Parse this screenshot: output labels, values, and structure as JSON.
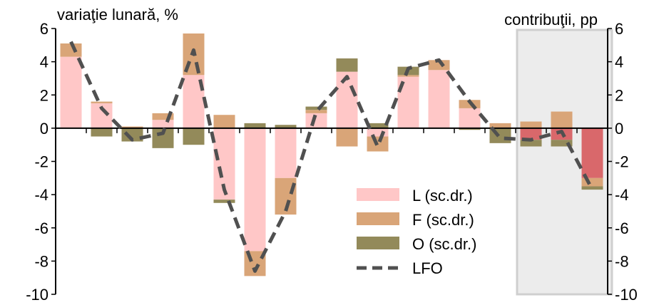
{
  "chart_data": {
    "type": "bar",
    "stacked": true,
    "title": "",
    "ylabel_left": "variaţie lunară, %",
    "ylabel_right": "contribuţii, pp",
    "ylim": [
      -10,
      6
    ],
    "yticks": [
      6,
      4,
      2,
      0,
      -2,
      -4,
      -6,
      -8,
      -10
    ],
    "grid": false,
    "highlighted_period": "last 3 periods (shaded box)",
    "n_periods": 18,
    "series": [
      {
        "name": "L (sc.dr.)",
        "kind": "bar",
        "color": "#ffc7c7",
        "values": [
          4.3,
          1.5,
          0.0,
          0.5,
          3.2,
          -4.3,
          -7.4,
          -3.0,
          0.9,
          3.4,
          -0.5,
          3.1,
          3.5,
          1.2,
          0.0,
          -0.7,
          -0.7,
          -3.0
        ]
      },
      {
        "name": "F (sc.dr.)",
        "kind": "bar",
        "color": "#d9a578",
        "values": [
          0.8,
          0.1,
          0.1,
          0.4,
          2.5,
          0.8,
          -1.5,
          -2.2,
          0.2,
          -1.1,
          -0.9,
          0.1,
          0.6,
          0.5,
          0.3,
          0.4,
          1.0,
          -0.5
        ]
      },
      {
        "name": "O (sc.dr.)",
        "kind": "bar",
        "color": "#938a5a",
        "values": [
          0.0,
          -0.5,
          -0.8,
          -1.2,
          -1.0,
          -0.2,
          0.3,
          0.2,
          0.2,
          0.8,
          0.3,
          0.5,
          0.0,
          -0.1,
          -0.9,
          -0.4,
          -0.4,
          -0.2
        ]
      },
      {
        "name": "LFO",
        "kind": "line",
        "color": "#505050",
        "values": [
          5.2,
          1.2,
          -0.7,
          -0.3,
          4.7,
          -3.7,
          -8.6,
          -5.0,
          1.0,
          3.1,
          -1.1,
          3.6,
          4.1,
          1.6,
          -0.6,
          -0.7,
          -0.2,
          -3.7
        ]
      }
    ],
    "legend": {
      "placement": "lower-right inside plot"
    }
  }
}
